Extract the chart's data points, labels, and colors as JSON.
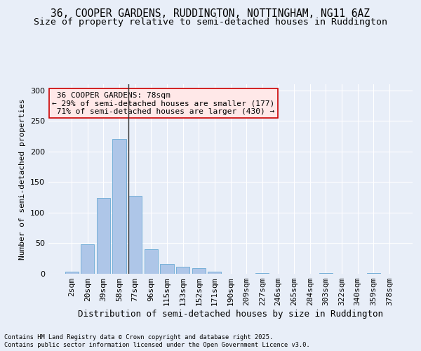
{
  "title1": "36, COOPER GARDENS, RUDDINGTON, NOTTINGHAM, NG11 6AZ",
  "title2": "Size of property relative to semi-detached houses in Ruddington",
  "xlabel": "Distribution of semi-detached houses by size in Ruddington",
  "ylabel": "Number of semi-detached properties",
  "footer1": "Contains HM Land Registry data © Crown copyright and database right 2025.",
  "footer2": "Contains public sector information licensed under the Open Government Licence v3.0.",
  "categories": [
    "2sqm",
    "20sqm",
    "39sqm",
    "58sqm",
    "77sqm",
    "96sqm",
    "115sqm",
    "133sqm",
    "152sqm",
    "171sqm",
    "190sqm",
    "209sqm",
    "227sqm",
    "246sqm",
    "265sqm",
    "284sqm",
    "303sqm",
    "322sqm",
    "340sqm",
    "359sqm",
    "378sqm"
  ],
  "values": [
    3,
    48,
    124,
    220,
    128,
    40,
    16,
    11,
    9,
    3,
    0,
    0,
    1,
    0,
    0,
    0,
    1,
    0,
    0,
    1,
    0
  ],
  "bar_color": "#aec6e8",
  "bar_edge_color": "#6aaad4",
  "highlight_index": 4,
  "highlight_line_color": "#333333",
  "property_label": "36 COOPER GARDENS: 78sqm",
  "pct_smaller": 29,
  "count_smaller": 177,
  "pct_larger": 71,
  "count_larger": 430,
  "annotation_box_facecolor": "#ffe8e8",
  "annotation_box_edgecolor": "#cc0000",
  "ylim": [
    0,
    310
  ],
  "yticks": [
    0,
    50,
    100,
    150,
    200,
    250,
    300
  ],
  "background_color": "#e8eef8",
  "grid_color": "#ffffff",
  "title1_fontsize": 10.5,
  "title2_fontsize": 9.5,
  "annotation_fontsize": 8,
  "ylabel_fontsize": 8,
  "xlabel_fontsize": 9,
  "tick_fontsize": 8
}
